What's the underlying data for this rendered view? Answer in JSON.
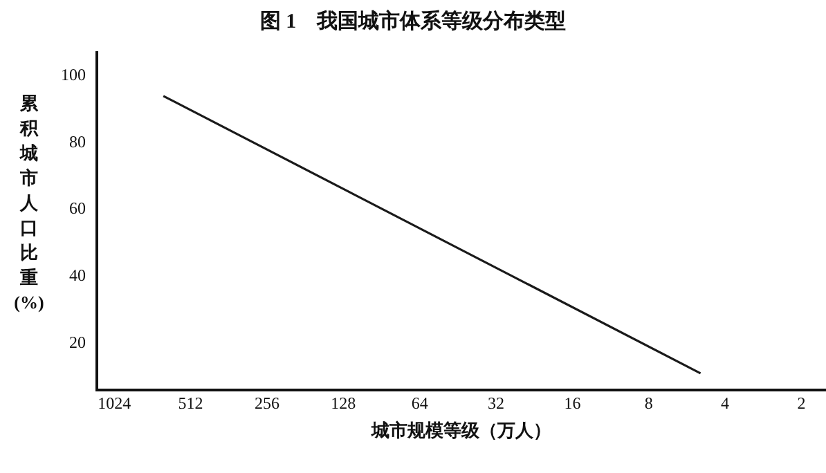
{
  "chart_data": {
    "type": "line",
    "title": "图 1    我国城市体系等级分布类型",
    "xlabel": "城市规模等级（万人）",
    "ylabel": "累积城市人口比重(%)",
    "x": [
      656,
      5
    ],
    "series": [
      {
        "color": "#1a1a1a",
        "values": [
          94,
          11
        ]
      }
    ],
    "log": "x",
    "xlim": [
      1200,
      1.6
    ],
    "xticks": [
      1024,
      512,
      256,
      128,
      64,
      32,
      16,
      8,
      4,
      2
    ],
    "ylim": [
      6,
      107
    ],
    "yticks": [
      20,
      40,
      60,
      80,
      100
    ],
    "grid": false,
    "legend": false,
    "marker": "none",
    "line_style": "solid"
  }
}
